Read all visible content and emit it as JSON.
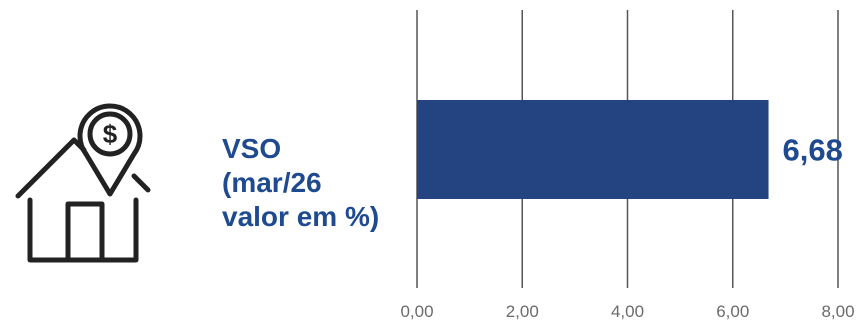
{
  "label": {
    "line1": "VSO",
    "line2": "(mar/26",
    "line3": "valor em %)"
  },
  "icon": {
    "name": "house-dollar-pin-icon"
  },
  "colors": {
    "bar": "#234481",
    "label": "#1f4a8f",
    "grid": "#555555",
    "tick": "#6b6b6b"
  },
  "chart_data": {
    "type": "bar",
    "orientation": "horizontal",
    "categories": [
      ""
    ],
    "values": [
      6.68
    ],
    "value_labels": [
      "6,68"
    ],
    "xlim": [
      0,
      8
    ],
    "xticks": [
      0,
      2,
      4,
      6,
      8
    ],
    "xtick_labels": [
      "0,00",
      "2,00",
      "4,00",
      "6,00",
      "8,00"
    ],
    "grid": "vertical"
  }
}
